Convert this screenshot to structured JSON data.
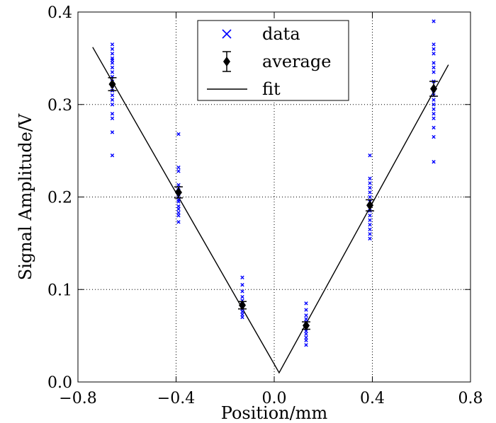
{
  "chart_data": {
    "type": "scatter",
    "xlabel": "Position/mm",
    "ylabel": "Signal Amplitude/V",
    "xlim": [
      -0.8,
      0.8
    ],
    "ylim": [
      0.0,
      0.4
    ],
    "x_ticks": [
      -0.8,
      -0.4,
      0.0,
      0.4,
      0.8
    ],
    "x_tick_labels": [
      "−0.8",
      "−0.4",
      "0.0",
      "0.4",
      "0.8"
    ],
    "y_ticks": [
      0.0,
      0.1,
      0.2,
      0.3,
      0.4
    ],
    "y_tick_labels": [
      "0.0",
      "0.1",
      "0.2",
      "0.3",
      "0.4"
    ],
    "grid": true,
    "legend_position": "top-center",
    "series": [
      {
        "name": "data",
        "kind": "scatter",
        "marker": "x",
        "color": "#0000ff",
        "points": [
          {
            "x": -0.66,
            "y": [
              0.365,
              0.36,
              0.355,
              0.35,
              0.348,
              0.345,
              0.34,
              0.335,
              0.33,
              0.325,
              0.32,
              0.315,
              0.31,
              0.305,
              0.3,
              0.29,
              0.285,
              0.27,
              0.245
            ]
          },
          {
            "x": -0.39,
            "y": [
              0.268,
              0.232,
              0.228,
              0.213,
              0.21,
              0.207,
              0.204,
              0.2,
              0.197,
              0.195,
              0.19,
              0.187,
              0.183,
              0.18,
              0.173
            ]
          },
          {
            "x": -0.13,
            "y": [
              0.113,
              0.105,
              0.098,
              0.092,
              0.088,
              0.085,
              0.082,
              0.079,
              0.076,
              0.073,
              0.07
            ]
          },
          {
            "x": 0.13,
            "y": [
              0.085,
              0.078,
              0.072,
              0.068,
              0.065,
              0.062,
              0.058,
              0.055,
              0.052,
              0.048,
              0.045,
              0.04
            ]
          },
          {
            "x": 0.39,
            "y": [
              0.245,
              0.22,
              0.215,
              0.21,
              0.205,
              0.2,
              0.195,
              0.19,
              0.185,
              0.18,
              0.175,
              0.17,
              0.165,
              0.16,
              0.155
            ]
          },
          {
            "x": 0.65,
            "y": [
              0.39,
              0.365,
              0.36,
              0.355,
              0.345,
              0.34,
              0.335,
              0.325,
              0.315,
              0.31,
              0.305,
              0.3,
              0.295,
              0.29,
              0.285,
              0.275,
              0.265,
              0.238
            ]
          }
        ]
      },
      {
        "name": "average",
        "kind": "errorbar",
        "marker": "diamond",
        "color": "#000000",
        "x": [
          -0.66,
          -0.39,
          -0.13,
          0.13,
          0.39,
          0.65
        ],
        "y": [
          0.322,
          0.205,
          0.083,
          0.061,
          0.191,
          0.317
        ],
        "err": [
          0.007,
          0.006,
          0.004,
          0.004,
          0.006,
          0.008
        ]
      },
      {
        "name": "fit",
        "kind": "line",
        "color": "#000000",
        "x": [
          -0.74,
          0.02,
          0.71
        ],
        "y": [
          0.362,
          0.01,
          0.343
        ]
      }
    ]
  }
}
